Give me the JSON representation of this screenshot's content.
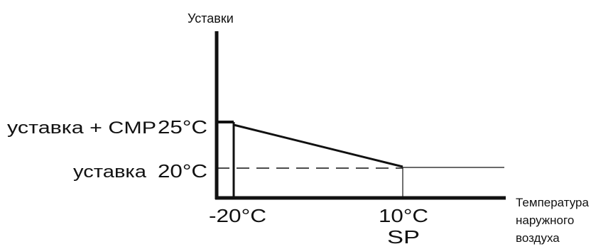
{
  "y_axis": {
    "label": "Уставки"
  },
  "x_axis": {
    "label_lines": [
      "Температура",
      "наружного",
      "воздуха"
    ]
  },
  "levels": {
    "upper": {
      "name": "уставка + CMP",
      "value": "25°C"
    },
    "lower": {
      "name": "уставка",
      "value": "20°C"
    }
  },
  "ticks": {
    "left": "-20°C",
    "right": "10°C",
    "right_sub": "SP"
  },
  "chart_data": {
    "type": "line",
    "title": "",
    "xlabel": "Температура наружного воздуха",
    "ylabel": "Уставки",
    "series": [
      {
        "x": [
          "-20°C",
          "10°C"
        ],
        "y": [
          "25°C",
          "20°C"
        ]
      }
    ]
  },
  "colors": {
    "ink": "#111111",
    "background": "#ffffff"
  }
}
